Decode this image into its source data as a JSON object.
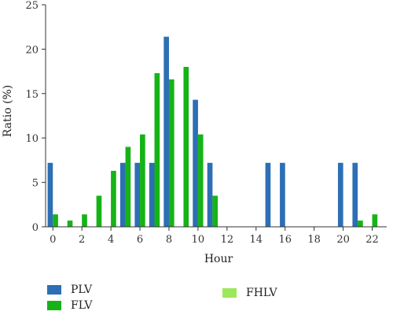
{
  "chart_data": {
    "type": "bar",
    "xlabel": "Hour",
    "ylabel": "Ratio (%)",
    "ylim": [
      0,
      25
    ],
    "xlim": [
      -0.5,
      23
    ],
    "x_ticks": [
      0,
      2,
      4,
      6,
      8,
      10,
      12,
      14,
      16,
      18,
      20,
      22
    ],
    "y_ticks": [
      0,
      5,
      10,
      15,
      20,
      25
    ],
    "grid": false,
    "legend_position": "bottom",
    "series": [
      {
        "name": "PLV",
        "color": "#2c6fb5",
        "points": [
          {
            "x": 0,
            "y": 7.2
          },
          {
            "x": 5,
            "y": 7.2
          },
          {
            "x": 6,
            "y": 7.2
          },
          {
            "x": 7,
            "y": 7.2
          },
          {
            "x": 8,
            "y": 21.4
          },
          {
            "x": 10,
            "y": 14.3
          },
          {
            "x": 11,
            "y": 7.2
          },
          {
            "x": 15,
            "y": 7.2
          },
          {
            "x": 16,
            "y": 7.2
          },
          {
            "x": 20,
            "y": 7.2
          },
          {
            "x": 21,
            "y": 7.2
          }
        ]
      },
      {
        "name": "FLV",
        "color": "#16b316",
        "points": [
          {
            "x": 0,
            "y": 1.4
          },
          {
            "x": 1,
            "y": 0.7
          },
          {
            "x": 2,
            "y": 1.4
          },
          {
            "x": 3,
            "y": 3.5
          },
          {
            "x": 4,
            "y": 6.3
          },
          {
            "x": 5,
            "y": 9.0
          },
          {
            "x": 6,
            "y": 10.4
          },
          {
            "x": 7,
            "y": 17.3
          },
          {
            "x": 8,
            "y": 16.6
          },
          {
            "x": 9,
            "y": 18.0
          },
          {
            "x": 10,
            "y": 10.4
          },
          {
            "x": 11,
            "y": 3.5
          },
          {
            "x": 21,
            "y": 0.7
          },
          {
            "x": 22,
            "y": 1.4
          }
        ]
      },
      {
        "name": "FHLV",
        "color": "#9be85a",
        "points": []
      }
    ]
  }
}
